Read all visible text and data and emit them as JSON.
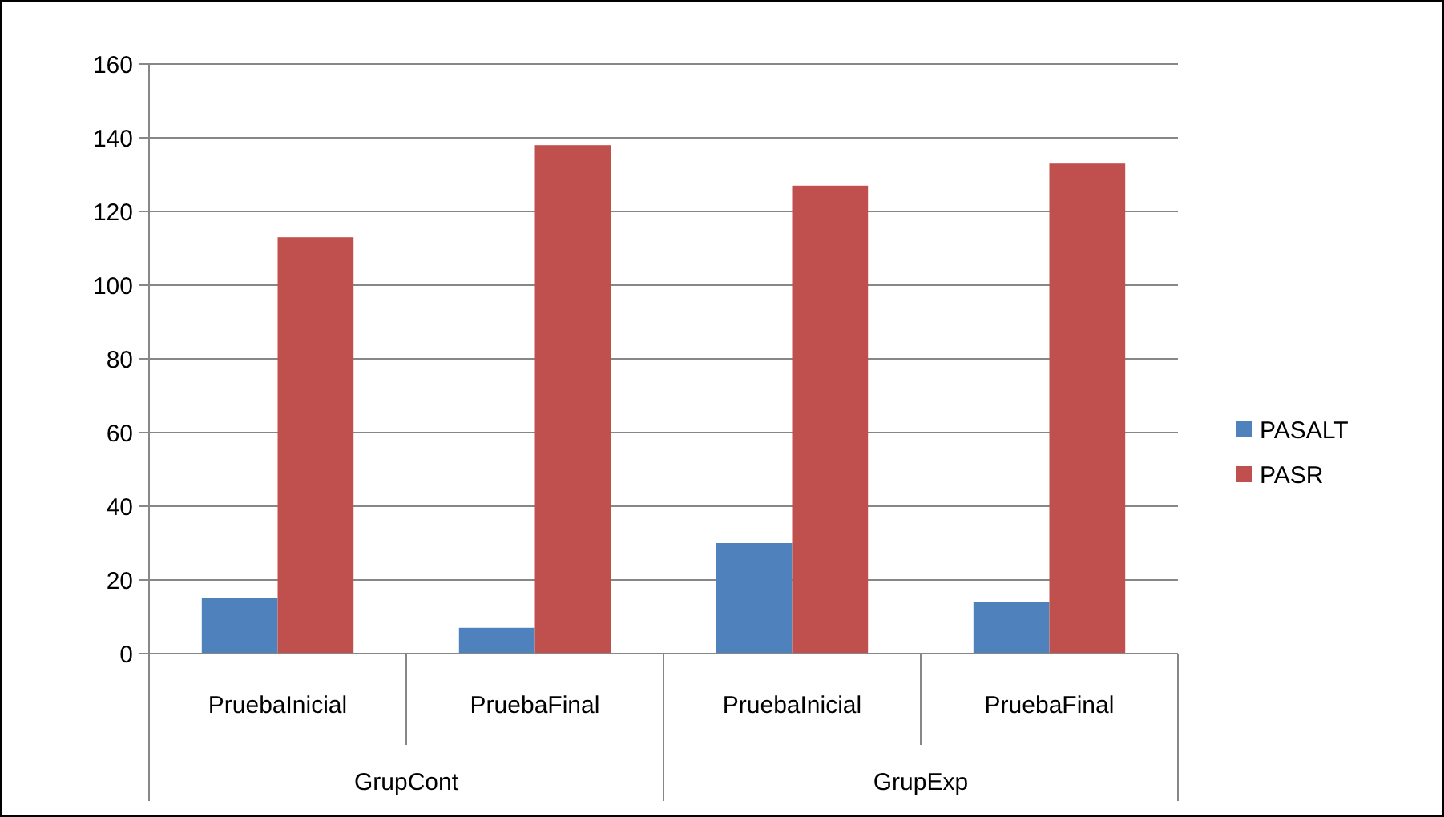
{
  "chart_data": {
    "type": "bar",
    "categories": [
      "PruebaInicial",
      "PruebaFinal",
      "PruebaInicial",
      "PruebaFinal"
    ],
    "annotations": [
      "GrupCont",
      "GrupExp"
    ],
    "series": [
      {
        "name": "PASALT",
        "color": "#4f81bd",
        "values": [
          15,
          7,
          30,
          14
        ]
      },
      {
        "name": "PASR",
        "color": "#c0504d",
        "values": [
          113,
          138,
          127,
          133
        ]
      }
    ],
    "ylim": [
      0,
      160
    ],
    "yticks": [
      0,
      20,
      40,
      60,
      80,
      100,
      120,
      140,
      160
    ],
    "grid": "y",
    "legend": "right"
  }
}
